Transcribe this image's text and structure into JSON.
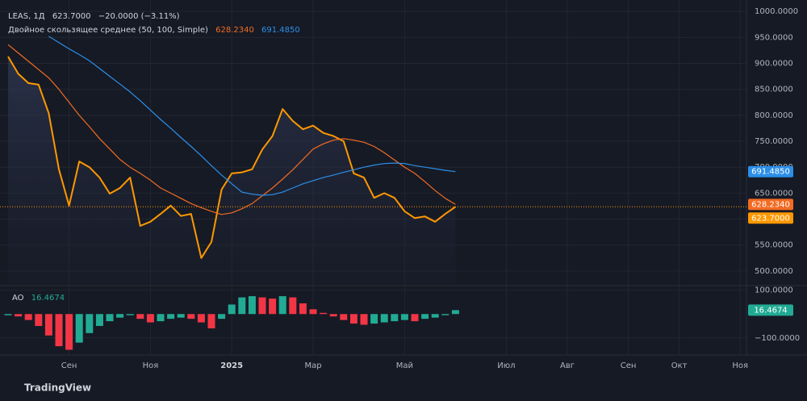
{
  "chart_data": [
    {
      "type": "line",
      "title": "LEAS, 1Д",
      "change_label": "−20.0000 (−3.11%)",
      "legend_title": "Двойное скользящее среднее (50, 100, Simple)",
      "categories": [
        null,
        null,
        null,
        null,
        null,
        null,
        "Сен",
        null,
        null,
        null,
        null,
        null,
        null,
        null,
        "Ноя",
        null,
        null,
        null,
        null,
        null,
        null,
        null,
        "2025",
        null,
        null,
        null,
        null,
        null,
        null,
        null,
        "Мар",
        null,
        null,
        null,
        null,
        null,
        null,
        null,
        null,
        "Май",
        null,
        null,
        null,
        null,
        null,
        null,
        null,
        null,
        null,
        "Июл",
        null,
        null,
        null,
        null,
        null,
        "Авг",
        null,
        null,
        null,
        null,
        null,
        "Сен",
        null,
        null,
        null,
        null,
        "Окт",
        null,
        null,
        null,
        null,
        null,
        "Ноя"
      ],
      "ylim": [
        475,
        1022
      ],
      "yticks": [
        {
          "value": 500,
          "label": "500.0000"
        },
        {
          "value": 550,
          "label": "550.0000"
        },
        {
          "value": 600,
          "label": "600.0000"
        },
        {
          "value": 650,
          "label": "650.0000"
        },
        {
          "value": 700,
          "label": "700.0000"
        },
        {
          "value": 750,
          "label": "750.0000"
        },
        {
          "value": 800,
          "label": "800.0000"
        },
        {
          "value": 850,
          "label": "850.0000"
        },
        {
          "value": 900,
          "label": "900.0000"
        },
        {
          "value": 950,
          "label": "950.0000"
        },
        {
          "value": 1000,
          "label": "1000.0000"
        }
      ],
      "grid": true,
      "series": [
        {
          "name": "LEAS",
          "color": "#ff9800",
          "area": true,
          "values": [
            913,
            880,
            862,
            859,
            804,
            696,
            626,
            711,
            700,
            680,
            649,
            660,
            680,
            587,
            595,
            610,
            626,
            606,
            610,
            525,
            556,
            657,
            688,
            690,
            696,
            734,
            760,
            812,
            789,
            773,
            780,
            766,
            760,
            750,
            688,
            680,
            641,
            650,
            641,
            615,
            602,
            605,
            595,
            610,
            623.7,
            null,
            null,
            null,
            null,
            null,
            null,
            null,
            null,
            null,
            null,
            null,
            null,
            null,
            null,
            null,
            null,
            null,
            null,
            null,
            null,
            null,
            null,
            null,
            null,
            null,
            null,
            null,
            null
          ],
          "value_labels": [
            null,
            null,
            null,
            null,
            null,
            null,
            null,
            null,
            null,
            null,
            null,
            null,
            null,
            null,
            null,
            null,
            null,
            null,
            null,
            null,
            null,
            null,
            null,
            null,
            null,
            null,
            null,
            null,
            null,
            null,
            null,
            null,
            null,
            null,
            null,
            null,
            null,
            null,
            null,
            null,
            null,
            null,
            null,
            null,
            "623.7000",
            null,
            null,
            null,
            null,
            null,
            null,
            null,
            null,
            null,
            null,
            null,
            null,
            null,
            null,
            null,
            null,
            null,
            null,
            null,
            null,
            null,
            null,
            null,
            null,
            null,
            null,
            null,
            null
          ]
        },
        {
          "name": "SMA 50",
          "color": "#f26b22",
          "values": [
            936,
            920,
            904,
            888,
            872,
            850,
            825,
            800,
            778,
            755,
            735,
            715,
            700,
            688,
            675,
            660,
            650,
            640,
            630,
            622,
            615,
            609,
            612,
            620,
            630,
            645,
            660,
            677,
            695,
            715,
            735,
            745,
            752,
            755,
            752,
            748,
            740,
            728,
            714,
            700,
            688,
            672,
            655,
            640,
            628.234,
            null,
            null,
            null,
            null,
            null,
            null,
            null,
            null,
            null,
            null,
            null,
            null,
            null,
            null,
            null,
            null,
            null,
            null,
            null,
            null,
            null,
            null,
            null,
            null,
            null,
            null,
            null,
            null
          ],
          "value_labels": [
            null,
            null,
            null,
            null,
            null,
            null,
            null,
            null,
            null,
            null,
            null,
            null,
            null,
            null,
            null,
            null,
            null,
            null,
            null,
            null,
            null,
            null,
            null,
            null,
            null,
            null,
            null,
            null,
            null,
            null,
            null,
            null,
            null,
            null,
            null,
            null,
            null,
            null,
            null,
            null,
            null,
            null,
            null,
            null,
            "628.2340",
            null,
            null,
            null,
            null,
            null,
            null,
            null,
            null,
            null,
            null,
            null,
            null,
            null,
            null,
            null,
            null,
            null,
            null,
            null,
            null,
            null,
            null,
            null,
            null,
            null,
            null,
            null,
            null
          ]
        },
        {
          "name": "SMA 100",
          "color": "#2b8fe8",
          "values": [
            null,
            null,
            null,
            null,
            952,
            940,
            928,
            917,
            905,
            890,
            875,
            860,
            845,
            828,
            810,
            792,
            775,
            757,
            740,
            722,
            703,
            685,
            668,
            652,
            648,
            646,
            647,
            652,
            660,
            668,
            674,
            680,
            685,
            690,
            695,
            700,
            704,
            707,
            708,
            707,
            703,
            700,
            697,
            694,
            691.485,
            null,
            null,
            null,
            null,
            null,
            null,
            null,
            null,
            null,
            null,
            null,
            null,
            null,
            null,
            null,
            null,
            null,
            null,
            null,
            null,
            null,
            null,
            null,
            null,
            null,
            null,
            null,
            null
          ],
          "value_labels": [
            null,
            null,
            null,
            null,
            null,
            null,
            null,
            null,
            null,
            null,
            null,
            null,
            null,
            null,
            null,
            null,
            null,
            null,
            null,
            null,
            null,
            null,
            null,
            null,
            null,
            null,
            null,
            null,
            null,
            null,
            null,
            null,
            null,
            null,
            null,
            null,
            null,
            null,
            null,
            null,
            null,
            null,
            null,
            null,
            "691.4850",
            null,
            null,
            null,
            null,
            null,
            null,
            null,
            null,
            null,
            null,
            null,
            null,
            null,
            null,
            null,
            null,
            null,
            null,
            null,
            null,
            null,
            null,
            null,
            null,
            null,
            null,
            null,
            null
          ]
        }
      ]
    },
    {
      "type": "histogram_ao",
      "title": "AO",
      "ylim": [
        -172,
        116
      ],
      "yticks": [
        {
          "value": -100,
          "label": "−100.0000"
        },
        {
          "value": 100,
          "label": "100.0000"
        }
      ],
      "up_color": "#22ab94",
      "down_color": "#f23645",
      "values": [
        -5,
        -10,
        -25,
        -50,
        -90,
        -135,
        -150,
        -120,
        -80,
        -50,
        -30,
        -15,
        -5,
        -20,
        -35,
        -30,
        -20,
        -15,
        -20,
        -35,
        -60,
        -20,
        40,
        70,
        75,
        70,
        65,
        75,
        70,
        45,
        20,
        5,
        -10,
        -25,
        -40,
        -45,
        -40,
        -35,
        -30,
        -25,
        -30,
        -20,
        -15,
        -5,
        16.4674,
        null,
        null,
        null,
        null,
        null,
        null,
        null,
        null,
        null,
        null,
        null,
        null,
        null,
        null,
        null,
        null,
        null,
        null,
        null,
        null,
        null,
        null,
        null,
        null,
        null,
        null,
        null,
        null
      ]
    }
  ],
  "brand": "TradingView"
}
